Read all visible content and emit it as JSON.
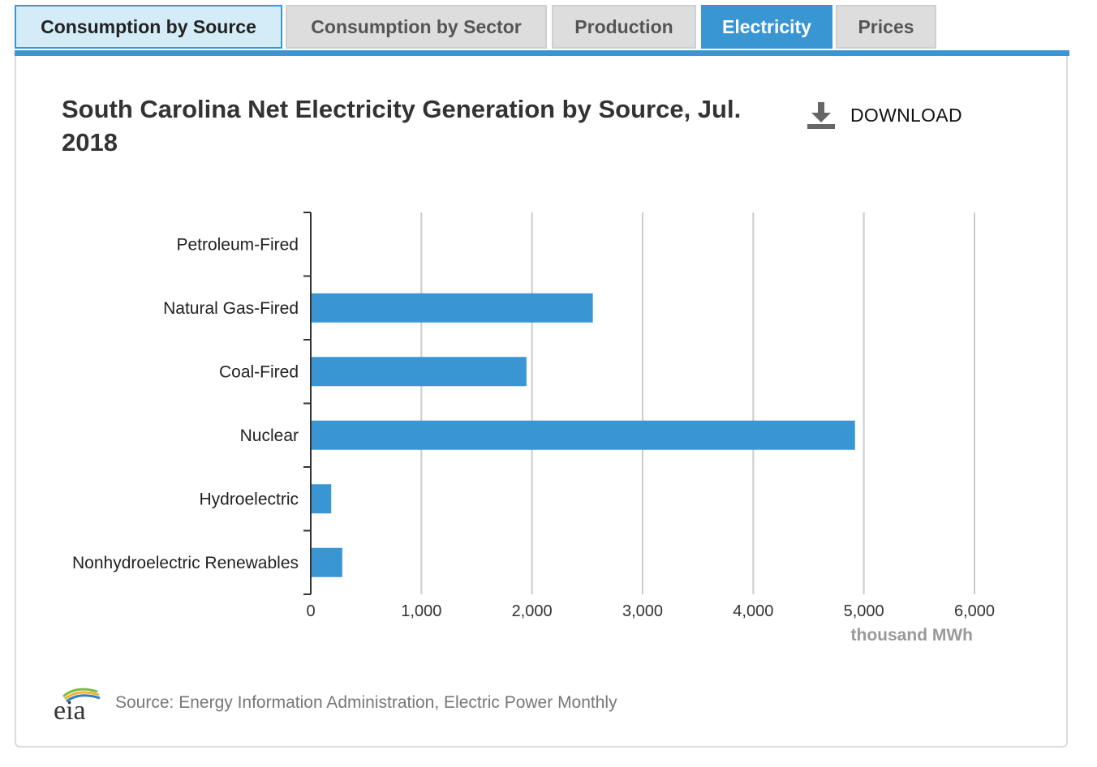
{
  "tabs": [
    {
      "label": "Consumption by Source",
      "state": "active-source"
    },
    {
      "label": "Consumption by Sector",
      "state": ""
    },
    {
      "label": "Production",
      "state": ""
    },
    {
      "label": "Electricity",
      "state": "active"
    },
    {
      "label": "Prices",
      "state": ""
    }
  ],
  "download": {
    "label": "DOWNLOAD",
    "icon": "download-icon"
  },
  "footer": {
    "logo_text": "eia",
    "source": "Source: Energy Information Administration, Electric Power Monthly"
  },
  "colors": {
    "accent": "#3a96d3",
    "bar": "#3a96d3",
    "grid": "#cccccc"
  },
  "chart_data": {
    "type": "bar",
    "orientation": "horizontal",
    "title": "South Carolina Net Electricity Generation by Source, Jul. 2018",
    "categories": [
      "Petroleum-Fired",
      "Natural Gas-Fired",
      "Coal-Fired",
      "Nuclear",
      "Hydroelectric",
      "Nonhydroelectric Renewables"
    ],
    "values": [
      5,
      2550,
      1950,
      4920,
      185,
      285
    ],
    "xlabel": "thousand MWh",
    "ylabel": "",
    "xlim": [
      0,
      6000
    ],
    "xticks": [
      0,
      1000,
      2000,
      3000,
      4000,
      5000,
      6000
    ],
    "xtick_labels": [
      "0",
      "1,000",
      "2,000",
      "3,000",
      "4,000",
      "5,000",
      "6,000"
    ],
    "grid": true,
    "legend": false
  }
}
